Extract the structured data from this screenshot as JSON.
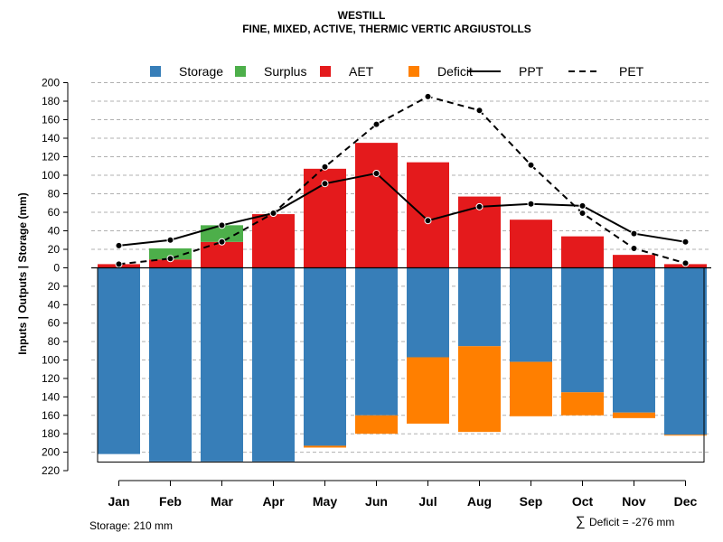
{
  "chart_data": {
    "type": "bar",
    "title": "WESTILL",
    "subtitle": "FINE, MIXED, ACTIVE, THERMIC VERTIC ARGIUSTOLLS",
    "ylabel": "Inputs | Outputs | Storage     (mm)",
    "categories": [
      "Jan",
      "Feb",
      "Mar",
      "Apr",
      "May",
      "Jun",
      "Jul",
      "Aug",
      "Sep",
      "Oct",
      "Nov",
      "Dec"
    ],
    "upper_ticks": [
      "200",
      "180",
      "160",
      "140",
      "120",
      "100",
      "80",
      "60",
      "40",
      "20",
      "0"
    ],
    "lower_ticks": [
      "20",
      "40",
      "60",
      "80",
      "100",
      "120",
      "140",
      "160",
      "180",
      "200",
      "220"
    ],
    "ylim_upper": [
      0,
      200
    ],
    "ylim_lower": [
      0,
      220
    ],
    "series": [
      {
        "name": "AET",
        "color": "#E41A1C",
        "values": [
          4,
          9,
          28,
          58,
          107,
          135,
          114,
          77,
          52,
          34,
          14,
          4
        ]
      },
      {
        "name": "Surplus",
        "color": "#4DAF4A",
        "values": [
          0,
          12,
          18,
          0,
          0,
          0,
          0,
          0,
          0,
          0,
          0,
          0
        ]
      },
      {
        "name": "Storage",
        "color": "#377EB8",
        "values": [
          202,
          210,
          210,
          210,
          193,
          160,
          97,
          85,
          102,
          135,
          157,
          181
        ]
      },
      {
        "name": "Deficit",
        "color": "#FF7F00",
        "values": [
          0,
          0,
          0,
          0,
          2,
          20,
          72,
          93,
          59,
          25,
          6,
          1
        ]
      },
      {
        "name": "PPT",
        "color": "#000000",
        "values": [
          24,
          30,
          46,
          59,
          91,
          102,
          51,
          66,
          69,
          67,
          37,
          28
        ]
      },
      {
        "name": "PET",
        "color": "#000000",
        "values": [
          4,
          10,
          28,
          59,
          109,
          155,
          185,
          170,
          111,
          59,
          21,
          5
        ]
      }
    ],
    "legend": [
      "Storage",
      "Surplus",
      "AET",
      "Deficit",
      "PPT",
      "PET"
    ],
    "legend_position": "top",
    "grid": true
  },
  "footer": {
    "storage_text": "Storage: 210 mm",
    "deficit_symbol": "∑",
    "deficit_text": "Deficit = -276 mm"
  }
}
